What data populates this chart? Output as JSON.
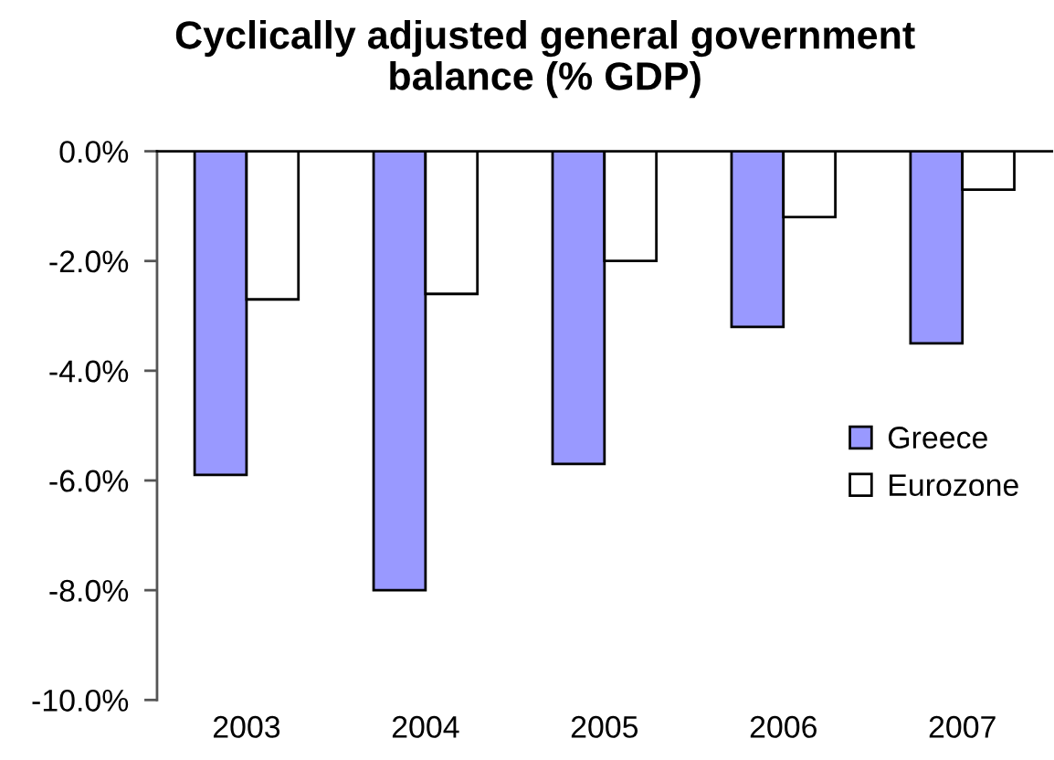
{
  "chart_data": {
    "type": "bar",
    "title": "Cyclically adjusted general government balance (% GDP)",
    "categories": [
      "2003",
      "2004",
      "2005",
      "2006",
      "2007"
    ],
    "series": [
      {
        "name": "Greece",
        "color": "#9999ff",
        "values": [
          -5.9,
          -8.0,
          -5.7,
          -3.2,
          -3.5
        ]
      },
      {
        "name": "Eurozone",
        "color": "#ffffff",
        "values": [
          -2.7,
          -2.6,
          -2.0,
          -1.2,
          -0.7
        ]
      }
    ],
    "ylim": [
      -10,
      0
    ],
    "yticks": [
      {
        "value": 0,
        "label": "0.0%"
      },
      {
        "value": -2,
        "label": "-2.0%"
      },
      {
        "value": -4,
        "label": "-4.0%"
      },
      {
        "value": -6,
        "label": "-6.0%"
      },
      {
        "value": -8,
        "label": "-8.0%"
      },
      {
        "value": -10,
        "label": "-10.0%"
      }
    ],
    "legend": "right"
  }
}
